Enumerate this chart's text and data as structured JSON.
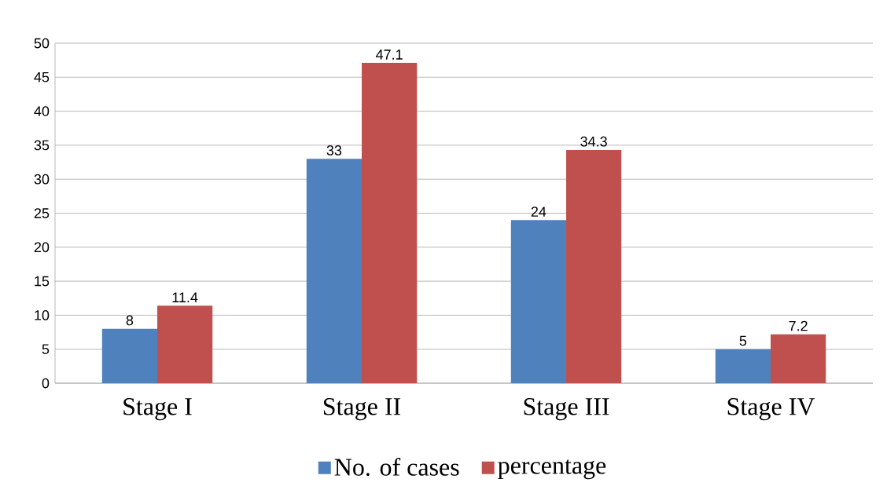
{
  "chart_data": {
    "type": "bar",
    "categories": [
      "Stage I",
      "Stage II",
      "Stage III",
      "Stage IV"
    ],
    "series": [
      {
        "name": "No. of cases",
        "color": "#4f81bd",
        "values": [
          8,
          33,
          24,
          5
        ]
      },
      {
        "name": "percentage",
        "color": "#c0504d",
        "values": [
          11.4,
          47.1,
          34.3,
          7.2
        ]
      }
    ],
    "ylim": [
      0,
      50
    ],
    "yticks": [
      0,
      5,
      10,
      15,
      20,
      25,
      30,
      35,
      40,
      45,
      50
    ],
    "grid": "y",
    "legend": "bottom",
    "data_labels": true
  }
}
